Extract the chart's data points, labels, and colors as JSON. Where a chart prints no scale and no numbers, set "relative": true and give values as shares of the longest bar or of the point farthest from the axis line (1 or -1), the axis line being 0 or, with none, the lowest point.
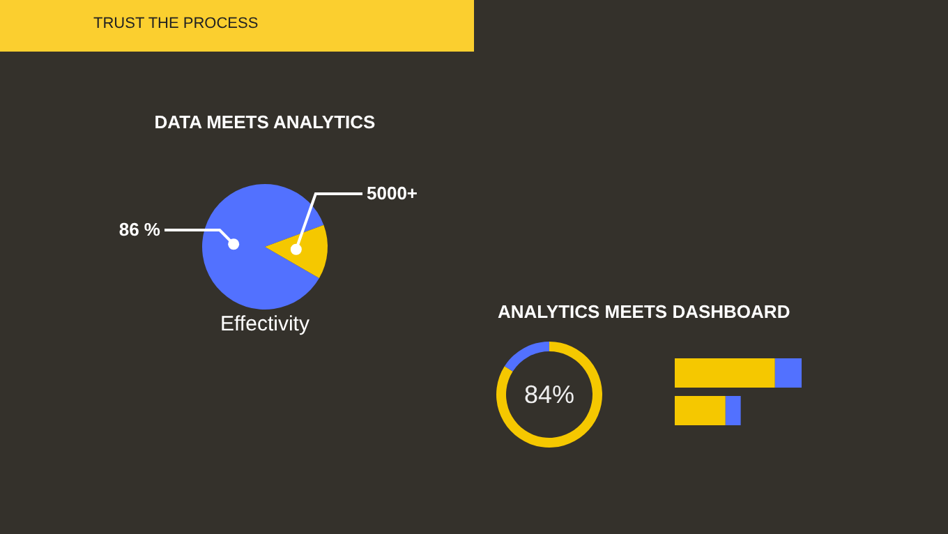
{
  "chart_data": [
    {
      "type": "pie",
      "title": "DATA MEETS ANALYTICS",
      "categories": [
        null,
        null
      ],
      "values": [
        86,
        14
      ],
      "colors": [
        "#5271ff",
        "#f5c800"
      ],
      "value_labels": [
        "86 %",
        "5000+"
      ],
      "annotations": [
        "TRUST THE PROCESS",
        "Effectivity"
      ]
    },
    {
      "type": "donut",
      "title": "ANALYTICS MEETS DASHBOARD",
      "categories": [
        null,
        null
      ],
      "values": [
        84,
        16
      ],
      "colors": [
        "#f5c800",
        "#5271ff"
      ],
      "value_labels": [
        "84%",
        null
      ]
    },
    {
      "type": "bar",
      "orientation": "horizontal",
      "stacked": true,
      "relative": true,
      "categories": [
        null,
        null
      ],
      "series": [
        {
          "color": "#f5c800",
          "values": [
            0.79,
            0.4
          ]
        },
        {
          "color": "#5271ff",
          "values": [
            0.21,
            0.12
          ]
        }
      ]
    }
  ]
}
